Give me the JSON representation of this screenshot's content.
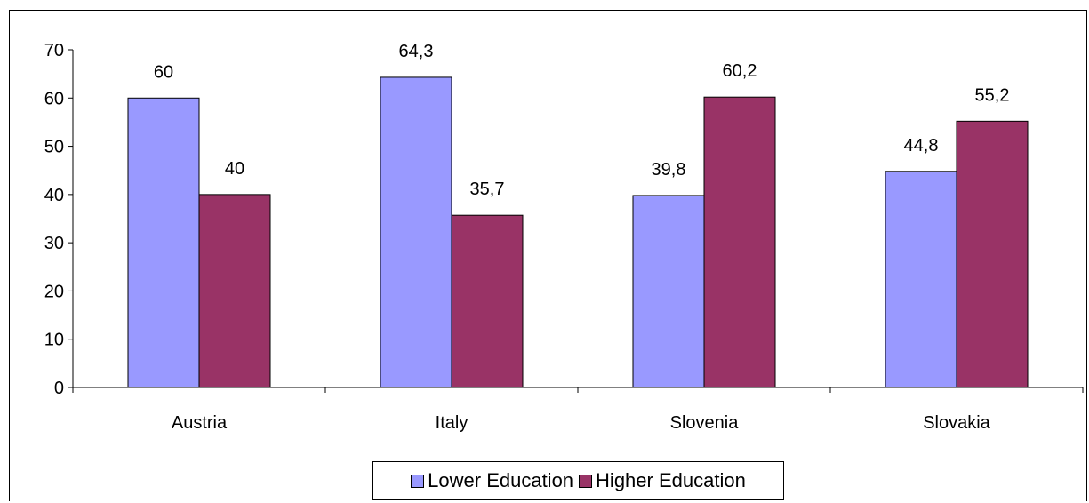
{
  "chart_data": {
    "type": "bar",
    "categories": [
      "Austria",
      "Italy",
      "Slovenia",
      "Slovakia"
    ],
    "series": [
      {
        "name": "Lower Education",
        "color": "#9999ff",
        "values": [
          60,
          64.3,
          39.8,
          44.8
        ],
        "labels": [
          "60",
          "64,3",
          "39,8",
          "44,8"
        ]
      },
      {
        "name": "Higher Education",
        "color": "#993366",
        "values": [
          40,
          35.7,
          60.2,
          55.2
        ],
        "labels": [
          "40",
          "35,7",
          "60,2",
          "55,2"
        ]
      }
    ],
    "ylim": [
      0,
      70
    ],
    "yticks": [
      0,
      10,
      20,
      30,
      40,
      50,
      60,
      70
    ],
    "title": "",
    "xlabel": "",
    "ylabel": "",
    "grid": false,
    "legend_position": "bottom"
  }
}
